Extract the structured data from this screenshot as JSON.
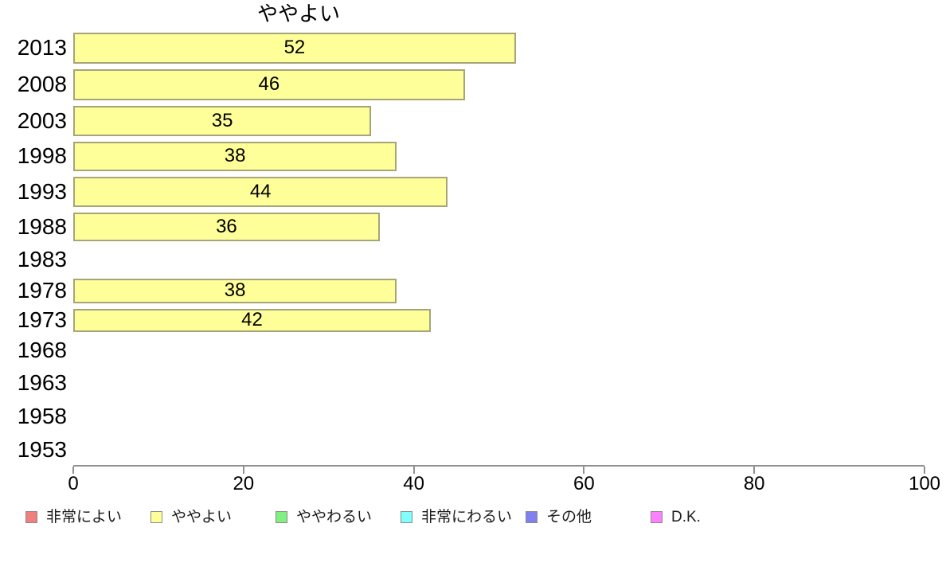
{
  "chart_data": {
    "type": "bar",
    "orientation": "horizontal",
    "title": "ややよい",
    "categories": [
      "2013",
      "2008",
      "2003",
      "1998",
      "1993",
      "1988",
      "1983",
      "1978",
      "1973",
      "1968",
      "1963",
      "1958",
      "1953"
    ],
    "values": [
      52,
      46,
      35,
      38,
      44,
      36,
      null,
      38,
      42,
      null,
      null,
      null,
      null
    ],
    "xlabel": "",
    "ylabel": "",
    "xlim": [
      0,
      100
    ],
    "x_ticks": [
      "0",
      "20",
      "40",
      "60",
      "80",
      "100"
    ],
    "grid": false,
    "bar_color": "#ffff99",
    "bar_border_color": "#a5a578",
    "axis_color": "#909090",
    "legend_position": "bottom",
    "legend": [
      {
        "label": "非常によい",
        "color": "#f08080"
      },
      {
        "label": "ややよい",
        "color": "#ffff99"
      },
      {
        "label": "ややわるい",
        "color": "#80f080"
      },
      {
        "label": "非常にわるい",
        "color": "#80ffff"
      },
      {
        "label": "その他",
        "color": "#8080f0"
      },
      {
        "label": "D.K.",
        "color": "#ff80ff"
      }
    ]
  }
}
